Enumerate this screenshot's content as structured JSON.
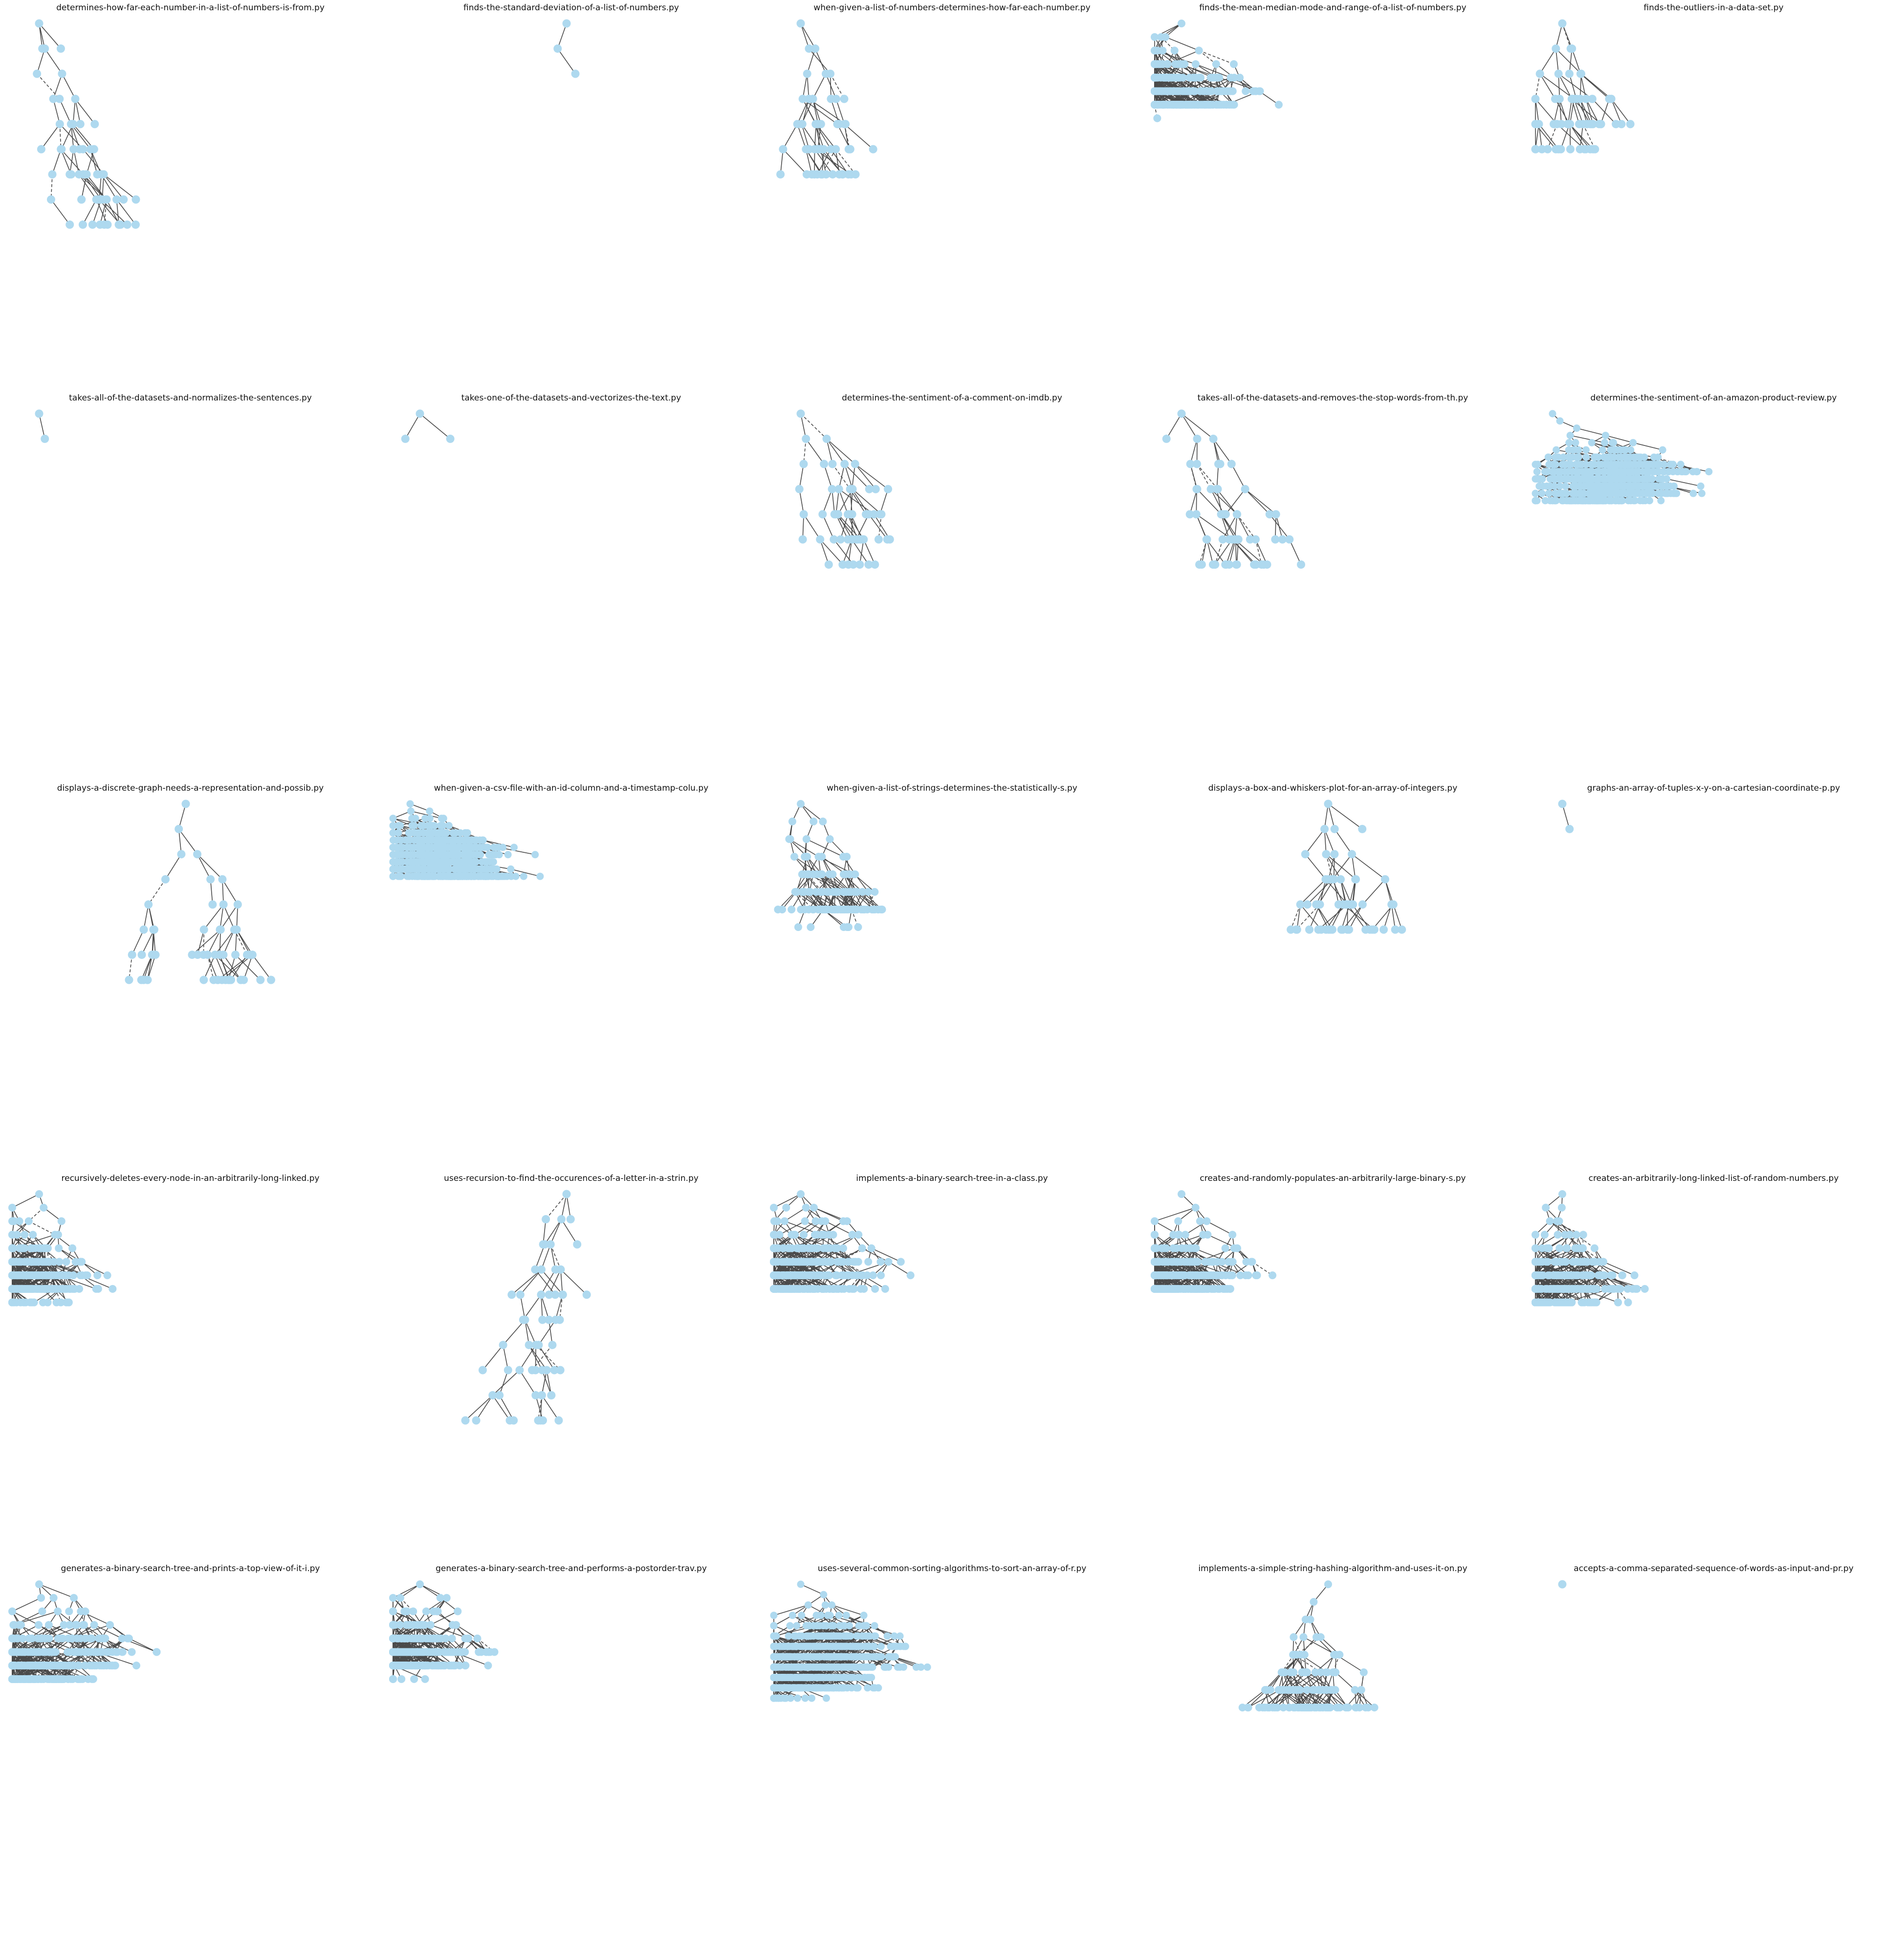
{
  "colors": {
    "node_fill": "#aed9ef",
    "edge": "#4a4a4a",
    "title": "#111111",
    "background": "#ffffff"
  },
  "panels": [
    {
      "title": "determines-how-far-each-number-in-a-list-of-numbers-is-from.py",
      "density": "sparse",
      "shape": "diagonal"
    },
    {
      "title": "finds-the-standard-deviation-of-a-list-of-numbers.py",
      "density": "sparse",
      "shape": "centered"
    },
    {
      "title": "when-given-a-list-of-numbers-determines-how-far-each-number.py",
      "density": "sparse",
      "shape": "diagonal"
    },
    {
      "title": "finds-the-mean-median-mode-and-range-of-a-list-of-numbers.py",
      "density": "dense",
      "shape": "block"
    },
    {
      "title": "finds-the-outliers-in-a-data-set.py",
      "density": "sparse",
      "shape": "diagonal"
    },
    {
      "title": "takes-all-of-the-datasets-and-normalizes-the-sentences.py",
      "density": "sparse",
      "shape": "diagonal"
    },
    {
      "title": "takes-one-of-the-datasets-and-vectorizes-the-text.py",
      "density": "sparse",
      "shape": "diagonal"
    },
    {
      "title": "determines-the-sentiment-of-a-comment-on-imdb.py",
      "density": "sparse",
      "shape": "diagonal"
    },
    {
      "title": "takes-all-of-the-datasets-and-removes-the-stop-words-from-th.py",
      "density": "sparse",
      "shape": "diagonal"
    },
    {
      "title": "determines-the-sentiment-of-an-amazon-product-review.py",
      "density": "very-dense",
      "shape": "band"
    },
    {
      "title": "displays-a-discrete-graph-needs-a-representation-and-possib.py",
      "density": "sparse",
      "shape": "centered"
    },
    {
      "title": "when-given-a-csv-file-with-an-id-column-and-a-timestamp-colu.py",
      "density": "very-dense",
      "shape": "band"
    },
    {
      "title": "when-given-a-list-of-strings-determines-the-statistically-s.py",
      "density": "medium",
      "shape": "diagonal"
    },
    {
      "title": "displays-a-box-and-whiskers-plot-for-an-array-of-integers.py",
      "density": "sparse",
      "shape": "centered"
    },
    {
      "title": "graphs-an-array-of-tuples-x-y-on-a-cartesian-coordinate-p.py",
      "density": "sparse",
      "shape": "diagonal"
    },
    {
      "title": "recursively-deletes-every-node-in-an-arbitrarily-long-linked.py",
      "density": "dense",
      "shape": "block"
    },
    {
      "title": "uses-recursion-to-find-the-occurences-of-a-letter-in-a-strin.py",
      "density": "sparse",
      "shape": "centered"
    },
    {
      "title": "implements-a-binary-search-tree-in-a-class.py",
      "density": "dense",
      "shape": "block"
    },
    {
      "title": "creates-and-randomly-populates-an-arbitrarily-large-binary-s.py",
      "density": "dense",
      "shape": "block"
    },
    {
      "title": "creates-an-arbitrarily-long-linked-list-of-random-numbers.py",
      "density": "dense",
      "shape": "block"
    },
    {
      "title": "generates-a-binary-search-tree-and-prints-a-top-view-of-it-i.py",
      "density": "dense",
      "shape": "block"
    },
    {
      "title": "generates-a-binary-search-tree-and-performs-a-postorder-trav.py",
      "density": "dense",
      "shape": "block"
    },
    {
      "title": "uses-several-common-sorting-algorithms-to-sort-an-array-of-r.py",
      "density": "very-dense",
      "shape": "block"
    },
    {
      "title": "implements-a-simple-string-hashing-algorithm-and-uses-it-on.py",
      "density": "medium",
      "shape": "centered"
    },
    {
      "title": "accepts-a-comma-separated-sequence-of-words-as-input-and-pr.py",
      "density": "sparse",
      "shape": "diagonal"
    }
  ]
}
